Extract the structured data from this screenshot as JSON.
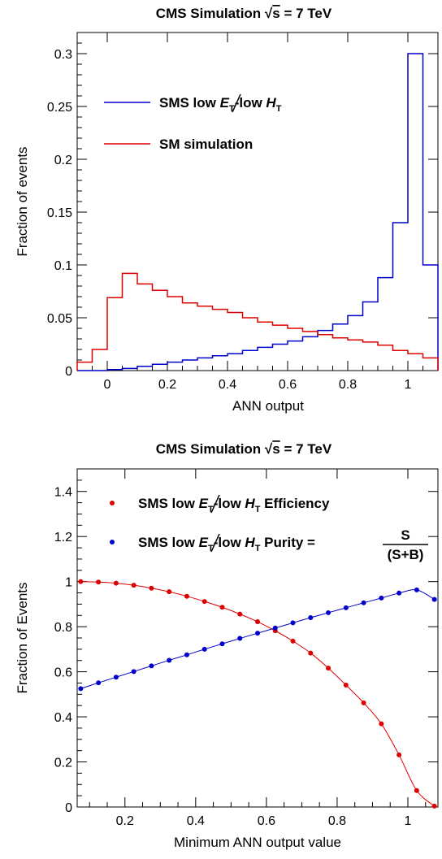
{
  "chart_data": [
    {
      "type": "line",
      "title": "CMS Simulation √s = 7 TeV",
      "title_parts": {
        "prefix": "CMS Simulation ",
        "sqrt": "√",
        "sqrt_arg": "s",
        "suffix": " = 7 TeV"
      },
      "xlabel": "ANN output",
      "ylabel": "Fraction of events",
      "xlim": [
        -0.1,
        1.1
      ],
      "ylim": [
        0,
        0.32
      ],
      "x_ticks": [
        "0",
        "0.2",
        "0.4",
        "0.6",
        "0.8",
        "1"
      ],
      "y_ticks": [
        "0",
        "0.05",
        "0.1",
        "0.15",
        "0.2",
        "0.25",
        "0.3"
      ],
      "legend_placement": "top-left",
      "bin_edges": [
        -0.1,
        -0.05,
        0.0,
        0.05,
        0.1,
        0.15,
        0.2,
        0.25,
        0.3,
        0.35,
        0.4,
        0.45,
        0.5,
        0.55,
        0.6,
        0.65,
        0.7,
        0.75,
        0.8,
        0.85,
        0.9,
        0.95,
        1.0,
        1.05,
        1.1
      ],
      "series": [
        {
          "name_parts": {
            "a": "SMS low ",
            "b": "E",
            "c": "T",
            "d": "-low ",
            "e": "H",
            "f": "T"
          },
          "color": "#0000cc",
          "values": [
            0,
            0,
            0.001,
            0.002,
            0.004,
            0.006,
            0.008,
            0.01,
            0.012,
            0.014,
            0.016,
            0.019,
            0.022,
            0.025,
            0.028,
            0.032,
            0.038,
            0.044,
            0.052,
            0.065,
            0.088,
            0.14,
            0.3,
            0.1
          ]
        },
        {
          "name": "SM simulation",
          "color": "#dd0000",
          "values": [
            0.008,
            0.02,
            0.069,
            0.092,
            0.082,
            0.076,
            0.07,
            0.064,
            0.061,
            0.058,
            0.055,
            0.05,
            0.046,
            0.043,
            0.04,
            0.037,
            0.034,
            0.031,
            0.029,
            0.027,
            0.024,
            0.019,
            0.016,
            0.012
          ]
        }
      ]
    },
    {
      "type": "scatter",
      "title": "CMS Simulation √s = 7 TeV",
      "title_parts": {
        "prefix": "CMS Simulation ",
        "sqrt": "√",
        "sqrt_arg": "s",
        "suffix": " = 7 TeV"
      },
      "xlabel": "Minimum ANN output value",
      "ylabel": "Fraction of Events",
      "xlim": [
        0.065,
        1.085
      ],
      "ylim": [
        0,
        1.5
      ],
      "x_ticks": [
        "0.2",
        "0.4",
        "0.6",
        "0.8",
        "1"
      ],
      "y_ticks": [
        "0",
        "0.2",
        "0.4",
        "0.6",
        "0.8",
        "1",
        "1.2",
        "1.4"
      ],
      "legend_placement": "top-left",
      "x": [
        0.075,
        0.125,
        0.175,
        0.225,
        0.275,
        0.325,
        0.375,
        0.425,
        0.475,
        0.525,
        0.575,
        0.625,
        0.675,
        0.725,
        0.775,
        0.825,
        0.875,
        0.925,
        0.975,
        1.025,
        1.075
      ],
      "series": [
        {
          "name_parts": {
            "a": "SMS low ",
            "b": "E",
            "c": "T",
            "d": "-low ",
            "e": "H",
            "f": "T",
            "g": " Efficiency"
          },
          "color": "#dd0000",
          "values": [
            1.0,
            0.998,
            0.993,
            0.984,
            0.971,
            0.955,
            0.935,
            0.912,
            0.886,
            0.856,
            0.822,
            0.782,
            0.736,
            0.683,
            0.616,
            0.541,
            0.462,
            0.369,
            0.231,
            0.073,
            0.004
          ]
        },
        {
          "name_parts": {
            "a": "SMS low ",
            "b": "E",
            "c": "T",
            "d": "-low ",
            "e": "H",
            "f": "T",
            "g": " Purity = ",
            "num": "S",
            "den": "(S+B)"
          },
          "color": "#0000cc",
          "values": [
            0.525,
            0.551,
            0.576,
            0.601,
            0.626,
            0.651,
            0.675,
            0.7,
            0.724,
            0.748,
            0.771,
            0.794,
            0.817,
            0.84,
            0.862,
            0.884,
            0.906,
            0.927,
            0.949,
            0.963,
            0.921
          ]
        }
      ]
    }
  ]
}
